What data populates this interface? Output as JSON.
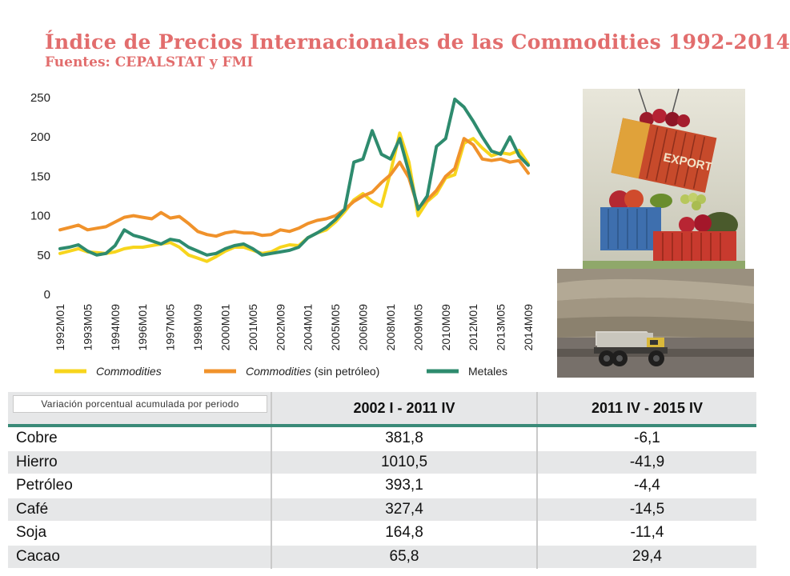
{
  "title": "Índice de Precios Internacionales de las Commodities 1992-2014",
  "subtitle": "Fuentes: CEPALSTAT y FMI",
  "colors": {
    "commodities": "#f7d51d",
    "sin_petroleo": "#f0922b",
    "metales": "#2e8b6e",
    "title": "#e26d6d",
    "table_rule": "#3a8a78"
  },
  "chart_data": {
    "type": "line",
    "x": [
      "1992M01",
      "1992M06",
      "1992M11",
      "1993M05",
      "1993M10",
      "1994M03",
      "1994M09",
      "1995M02",
      "1995M07",
      "1996M01",
      "1996M06",
      "1996M11",
      "1997M05",
      "1997M10",
      "1998M03",
      "1998M09",
      "1999M02",
      "1999M07",
      "2000M01",
      "2000M06",
      "2000M11",
      "2001M05",
      "2001M10",
      "2002M03",
      "2002M09",
      "2003M02",
      "2003M07",
      "2004M01",
      "2004M06",
      "2004M11",
      "2005M05",
      "2005M10",
      "2006M03",
      "2006M09",
      "2007M02",
      "2007M07",
      "2008M01",
      "2008M07",
      "2008M12",
      "2009M05",
      "2009M10",
      "2010M03",
      "2010M09",
      "2011M02",
      "2011M07",
      "2012M01",
      "2012M06",
      "2012M11",
      "2013M05",
      "2013M10",
      "2014M03",
      "2014M09"
    ],
    "tick_labels": [
      "1992M01",
      "1993M05",
      "1994M09",
      "1996M01",
      "1997M05",
      "1998M09",
      "2000M01",
      "2001M05",
      "2002M09",
      "2004M01",
      "2005M05",
      "2006M09",
      "2008M01",
      "2009M05",
      "2010M09",
      "2012M01",
      "2013M05",
      "2014M09"
    ],
    "ylim": [
      0,
      250
    ],
    "yticks": [
      0,
      50,
      100,
      150,
      200,
      250
    ],
    "grid": false,
    "legend_position": "bottom",
    "series": [
      {
        "name": "Commodities",
        "color_key": "commodities",
        "values": [
          52,
          55,
          58,
          54,
          53,
          52,
          54,
          58,
          60,
          60,
          62,
          64,
          66,
          60,
          50,
          46,
          42,
          48,
          55,
          60,
          60,
          56,
          52,
          54,
          60,
          63,
          62,
          72,
          78,
          82,
          92,
          105,
          120,
          128,
          118,
          112,
          155,
          205,
          168,
          100,
          118,
          128,
          148,
          152,
          192,
          198,
          186,
          176,
          180,
          178,
          183,
          166
        ]
      },
      {
        "name": "Commodities (sin petróleo)",
        "color_key": "sin_petroleo",
        "values": [
          82,
          85,
          88,
          82,
          84,
          86,
          92,
          98,
          100,
          98,
          96,
          104,
          97,
          99,
          90,
          80,
          76,
          74,
          78,
          80,
          78,
          78,
          75,
          76,
          82,
          80,
          84,
          90,
          94,
          96,
          100,
          108,
          118,
          125,
          130,
          142,
          152,
          168,
          148,
          110,
          120,
          132,
          150,
          160,
          198,
          190,
          172,
          170,
          172,
          168,
          170,
          154
        ]
      },
      {
        "name": "Metales",
        "color_key": "metales",
        "values": [
          58,
          60,
          63,
          55,
          50,
          52,
          62,
          82,
          75,
          72,
          68,
          64,
          70,
          68,
          60,
          55,
          50,
          52,
          58,
          62,
          64,
          58,
          50,
          52,
          54,
          56,
          60,
          72,
          78,
          85,
          95,
          108,
          168,
          172,
          208,
          178,
          172,
          198,
          155,
          108,
          125,
          188,
          198,
          248,
          238,
          220,
          200,
          182,
          178,
          200,
          176,
          164
        ]
      }
    ]
  },
  "table": {
    "caption": "Variación porcentual acumulada por periodo",
    "headers": [
      "",
      "2002 I - 2011 IV",
      "2011 IV - 2015 IV"
    ],
    "rows": [
      {
        "name": "Cobre",
        "v1": "381,8",
        "v2": "-6,1"
      },
      {
        "name": "Hierro",
        "v1": "1010,5",
        "v2": "-41,9"
      },
      {
        "name": "Petróleo",
        "v1": "393,1",
        "v2": "-4,4"
      },
      {
        "name": "Café",
        "v1": "327,4",
        "v2": "-14,5"
      },
      {
        "name": "Soja",
        "v1": "164,8",
        "v2": "-11,4"
      },
      {
        "name": "Cacao",
        "v1": "65,8",
        "v2": "29,4"
      }
    ]
  },
  "photos": {
    "export_text": "EXPORT"
  }
}
